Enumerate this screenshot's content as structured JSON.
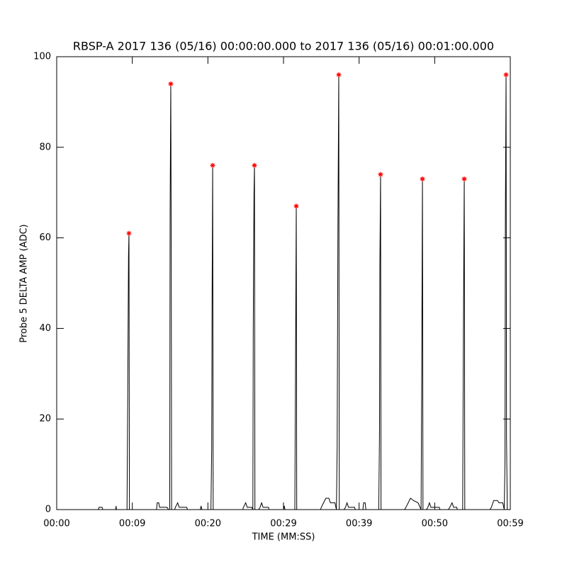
{
  "chart_data": {
    "type": "line",
    "title": "RBSP-A 2017 136 (05/16) 00:00:00.000 to 2017 136 (05/16) 00:01:00.000",
    "xlabel": "TIME (MM:SS)",
    "ylabel": "Probe 5 DELTA AMP (ADC)",
    "xlim": [
      0,
      60
    ],
    "ylim": [
      0,
      100
    ],
    "xticks": [
      {
        "value": 0,
        "label": "00:00"
      },
      {
        "value": 10,
        "label": "00:09"
      },
      {
        "value": 20,
        "label": "00:20"
      },
      {
        "value": 30,
        "label": "00:29"
      },
      {
        "value": 40,
        "label": "00:39"
      },
      {
        "value": 50,
        "label": "00:50"
      },
      {
        "value": 60,
        "label": "00:59"
      }
    ],
    "yticks": [
      0,
      20,
      40,
      60,
      80,
      100
    ],
    "color": "#000000",
    "x": [
      0,
      5.5,
      5.6,
      6.0,
      6.1,
      7.8,
      7.85,
      7.9,
      9.3,
      9.4,
      9.5,
      9.56,
      9.62,
      13.2,
      13.3,
      13.5,
      13.6,
      14.6,
      14.8,
      14.95,
      15.0,
      15.09,
      15.15,
      15.2,
      15.6,
      15.7,
      16.0,
      16.2,
      17.2,
      17.3,
      19.0,
      19.1,
      19.2,
      20.4,
      20.5,
      20.55,
      20.63,
      20.7,
      24.6,
      24.7,
      25.0,
      25.2,
      25.8,
      25.95,
      26.0,
      26.1,
      26.16,
      26.22,
      26.7,
      26.9,
      27.1,
      27.3,
      28.0,
      28.1,
      30.0,
      30.1,
      30.2,
      31.5,
      31.6,
      31.69,
      31.75,
      34.9,
      35.0,
      35.3,
      35.6,
      36.0,
      36.2,
      36.8,
      37.0,
      37.1,
      37.2,
      37.31,
      37.38,
      38.0,
      38.2,
      38.4,
      38.6,
      39.4,
      39.5,
      40.5,
      40.6,
      40.8,
      40.9,
      42.6,
      42.7,
      42.75,
      42.84,
      42.9,
      46.0,
      46.2,
      46.5,
      46.8,
      47.2,
      47.8,
      48.2,
      48.3,
      48.38,
      48.45,
      48.9,
      49.1,
      49.3,
      49.5,
      50.6,
      50.7,
      51.8,
      52.0,
      52.3,
      52.5,
      52.9,
      53.0,
      53.7,
      53.8,
      53.85,
      53.91,
      53.98,
      57.3,
      57.5,
      57.8,
      58.3,
      58.5,
      59.0,
      59.2,
      59.3,
      59.35,
      59.44,
      59.5,
      59.6
    ],
    "values": [
      0,
      0,
      0.5,
      0.5,
      0,
      0,
      0.8,
      0,
      0,
      26,
      56,
      61,
      0,
      0,
      1.5,
      1.5,
      0.5,
      0.5,
      0,
      0,
      65,
      94,
      56,
      0,
      0,
      0.5,
      1.5,
      0.5,
      0.5,
      0,
      0,
      0.8,
      0,
      0,
      13,
      44,
      76,
      0,
      0,
      0.5,
      1.5,
      0.5,
      0.5,
      0,
      40,
      70,
      76,
      0,
      0,
      0.5,
      1.5,
      0.5,
      0.5,
      0,
      0,
      0.8,
      0,
      0,
      35,
      67,
      0,
      0,
      0.5,
      1.5,
      2.5,
      2.5,
      1.5,
      1.5,
      0,
      14,
      62,
      96,
      0,
      0,
      0.5,
      1.5,
      0.5,
      0.5,
      0,
      0,
      1.5,
      1.5,
      0,
      0,
      17,
      54,
      74,
      0,
      0,
      0.5,
      1.5,
      2.5,
      2,
      1.5,
      0,
      37,
      73,
      0,
      0,
      0.5,
      1.5,
      0.5,
      0.5,
      0,
      0,
      0.5,
      1.5,
      0.5,
      0.5,
      0,
      0,
      40,
      55,
      73,
      0,
      0,
      0.5,
      2,
      2,
      1.5,
      1.5,
      0,
      11,
      64,
      96,
      16,
      0
    ],
    "peaks": {
      "color": "#ff0000",
      "x": [
        9.56,
        15.09,
        20.63,
        26.16,
        31.69,
        37.31,
        42.84,
        48.38,
        53.91,
        59.44
      ],
      "values": [
        61,
        94,
        76,
        76,
        67,
        96,
        74,
        73,
        73,
        96
      ]
    }
  }
}
